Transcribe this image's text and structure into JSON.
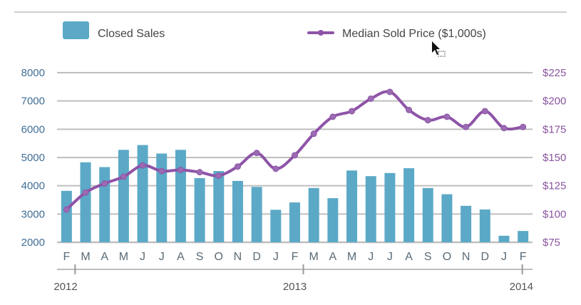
{
  "chart_data": {
    "type": "bar+line",
    "title": "",
    "colors": {
      "bars": "#5ba9c7",
      "line": "#8e54a7",
      "grid": "#bfbfbf"
    },
    "legend": {
      "placement": "top",
      "bars_label": "Closed Sales",
      "line_label": "Median Sold Price ($1,000s)"
    },
    "categories": [
      "F",
      "M",
      "A",
      "M",
      "J",
      "J",
      "A",
      "S",
      "O",
      "N",
      "D",
      "J",
      "F",
      "M",
      "A",
      "M",
      "J",
      "J",
      "A",
      "S",
      "O",
      "N",
      "D",
      "J",
      "F"
    ],
    "years": [
      {
        "label": "2012",
        "at_index": 0
      },
      {
        "label": "2013",
        "at_index": 12
      },
      {
        "label": "2014",
        "at_index": 24
      }
    ],
    "left_axis": {
      "ylim": [
        2000,
        8000
      ],
      "ticks": [
        {
          "value": 2000,
          "label": "2000"
        },
        {
          "value": 3000,
          "label": "3000"
        },
        {
          "value": 4000,
          "label": "4000"
        },
        {
          "value": 5000,
          "label": "5000"
        },
        {
          "value": 6000,
          "label": "6000"
        },
        {
          "value": 7000,
          "label": "7000"
        },
        {
          "value": 8000,
          "label": "8000"
        }
      ]
    },
    "right_axis": {
      "ylim": [
        75,
        225
      ],
      "ticks": [
        {
          "value": 75,
          "label": "$75"
        },
        {
          "value": 100,
          "label": "$100"
        },
        {
          "value": 125,
          "label": "$125"
        },
        {
          "value": 150,
          "label": "$150"
        },
        {
          "value": 175,
          "label": "$175"
        },
        {
          "value": 200,
          "label": "$200"
        },
        {
          "value": 225,
          "label": "$225"
        }
      ]
    },
    "series": [
      {
        "name": "Closed Sales",
        "kind": "bar",
        "axis": "left",
        "values": [
          3820,
          4830,
          4660,
          5270,
          5440,
          5140,
          5270,
          4270,
          4520,
          4170,
          3960,
          3150,
          3410,
          3920,
          3560,
          4540,
          4340,
          4450,
          4620,
          3920,
          3700,
          3290,
          3160,
          2230,
          2400
        ]
      },
      {
        "name": "Median Sold Price ($1,000s)",
        "kind": "line",
        "axis": "right",
        "values": [
          104,
          119,
          127,
          133,
          143,
          138,
          139,
          137,
          134,
          142,
          154,
          140,
          152,
          171,
          186,
          191,
          202,
          208,
          192,
          183,
          186,
          177,
          191,
          176,
          177
        ]
      }
    ]
  }
}
